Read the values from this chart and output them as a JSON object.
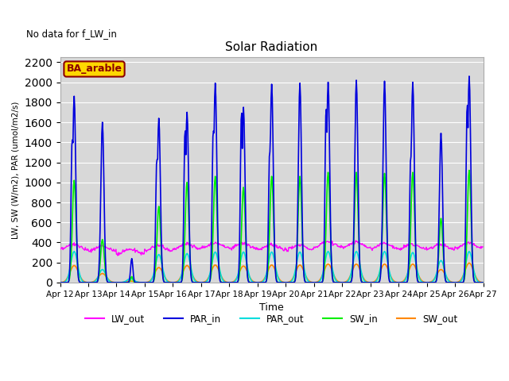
{
  "title": "Solar Radiation",
  "no_data_text": "No data for f_LW_in",
  "legend_label": "BA_arable",
  "xlabel": "Time",
  "ylabel": "LW, SW (W/m2), PAR (umol/m2/s)",
  "ylim": [
    0,
    2250
  ],
  "yticks": [
    0,
    200,
    400,
    600,
    800,
    1000,
    1200,
    1400,
    1600,
    1800,
    2000,
    2200
  ],
  "bg_color": "#d8d8d8",
  "series_colors": {
    "LW_out": "#ff00ff",
    "PAR_in": "#0000dd",
    "PAR_out": "#00dddd",
    "SW_in": "#00ee00",
    "SW_out": "#ff8800"
  },
  "x_tick_labels": [
    "Apr 12",
    "Apr 13",
    "Apr 14",
    "Apr 15",
    "Apr 16",
    "Apr 17",
    "Apr 18",
    "Apr 19",
    "Apr 20",
    "Apr 21",
    "Apr 22",
    "Apr 23",
    "Apr 24",
    "Apr 25",
    "Apr 26",
    "Apr 27"
  ],
  "x_tick_positions": [
    0,
    48,
    96,
    144,
    192,
    240,
    288,
    336,
    384,
    432,
    480,
    528,
    576,
    624,
    672,
    720
  ],
  "n_days": 15,
  "steps_per_day": 48,
  "par_in_peaks": [
    1860,
    1600,
    240,
    1640,
    1700,
    1990,
    1750,
    1980,
    1990,
    2000,
    2020,
    2010,
    2000,
    1490,
    2060
  ],
  "par_in_peaks2": [
    1450,
    0,
    0,
    1250,
    1540,
    1540,
    1720,
    1330,
    0,
    1760,
    0,
    0,
    1280,
    0,
    1800
  ],
  "sw_in_peaks": [
    1020,
    430,
    60,
    760,
    1000,
    1060,
    950,
    1060,
    1060,
    1100,
    1100,
    1090,
    1100,
    640,
    1120
  ],
  "sw_out_peaks": [
    170,
    90,
    15,
    150,
    170,
    175,
    165,
    175,
    175,
    185,
    185,
    185,
    185,
    130,
    195
  ],
  "par_out_peaks": [
    310,
    130,
    40,
    280,
    290,
    305,
    305,
    305,
    305,
    310,
    310,
    310,
    300,
    220,
    310
  ],
  "lw_base": [
    355,
    340,
    310,
    345,
    360,
    370,
    365,
    355,
    350,
    380,
    375,
    365,
    360,
    355,
    370
  ]
}
